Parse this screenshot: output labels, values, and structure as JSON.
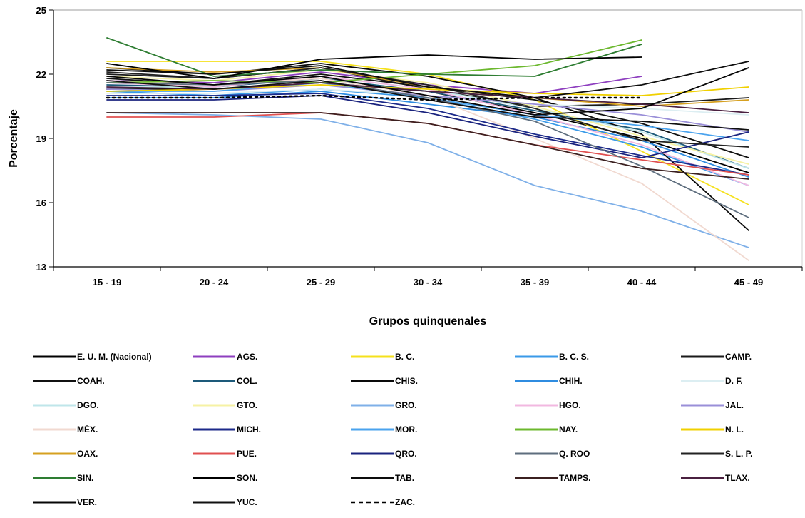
{
  "chart_data": {
    "type": "line",
    "xlabel": "Grupos quinquenales",
    "ylabel": "Porcentaje",
    "ylim": [
      13,
      25
    ],
    "yticks": [
      13,
      16,
      19,
      22,
      25
    ],
    "categories": [
      "15 - 19",
      "20 - 24",
      "25 - 29",
      "30 - 34",
      "35 - 39",
      "40 - 44",
      "45 - 49"
    ],
    "grid": false,
    "legend_position": "bottom",
    "series": [
      {
        "name": "E. U. M.  (Nacional)",
        "color": "#000000",
        "dash": "solid",
        "values": [
          21.3,
          21.3,
          21.6,
          21.2,
          20.2,
          19.0,
          17.4
        ]
      },
      {
        "name": "AGS.",
        "color": "#8e3fbf",
        "dash": "solid",
        "values": [
          21.7,
          21.6,
          22.1,
          21.5,
          21.1,
          21.9,
          null
        ]
      },
      {
        "name": "B. C.",
        "color": "#f5e11c",
        "dash": "solid",
        "values": [
          22.6,
          22.6,
          22.6,
          22.0,
          20.8,
          18.4,
          15.9
        ]
      },
      {
        "name": "B. C. S.",
        "color": "#3a9ae8",
        "dash": "solid",
        "values": [
          21.2,
          21.0,
          21.3,
          20.9,
          19.9,
          18.6,
          16.8
        ]
      },
      {
        "name": "CAMP.",
        "color": "#1a1a1a",
        "dash": "solid",
        "values": [
          22.0,
          21.8,
          22.3,
          21.3,
          20.5,
          20.6,
          20.9
        ]
      },
      {
        "name": "COAH.",
        "color": "#111111",
        "dash": "solid",
        "values": [
          21.8,
          21.5,
          22.0,
          21.4,
          20.8,
          19.7,
          18.1
        ]
      },
      {
        "name": "COL.",
        "color": "#1d5a7a",
        "dash": "solid",
        "values": [
          21.5,
          21.4,
          21.8,
          21.2,
          20.3,
          19.4,
          17.6
        ]
      },
      {
        "name": "CHIS.",
        "color": "#0a0a0a",
        "dash": "solid",
        "values": [
          22.3,
          22.0,
          22.5,
          21.9,
          20.9,
          19.2,
          14.7
        ]
      },
      {
        "name": "CHIH.",
        "color": "#2f8ce0",
        "dash": "solid",
        "values": [
          20.9,
          20.9,
          21.2,
          20.6,
          20.0,
          18.9,
          17.2
        ]
      },
      {
        "name": "D. F.",
        "color": "#dceef2",
        "dash": "solid",
        "values": [
          21.1,
          21.1,
          21.3,
          21.0,
          20.6,
          20.4,
          20.1
        ]
      },
      {
        "name": "DGO.",
        "color": "#bfe6ea",
        "dash": "solid",
        "values": [
          21.4,
          21.4,
          21.9,
          21.3,
          20.4,
          19.3,
          17.6
        ]
      },
      {
        "name": "GTO.",
        "color": "#f6f2a4",
        "dash": "solid",
        "values": [
          21.9,
          21.7,
          22.2,
          21.6,
          20.5,
          19.1,
          17.8
        ]
      },
      {
        "name": "GRO.",
        "color": "#7fb0e8",
        "dash": "solid",
        "values": [
          20.2,
          20.1,
          19.9,
          18.8,
          16.8,
          15.6,
          13.9
        ]
      },
      {
        "name": "HGO.",
        "color": "#f2b8e0",
        "dash": "solid",
        "values": [
          21.6,
          21.4,
          21.9,
          21.3,
          20.1,
          18.7,
          16.8
        ]
      },
      {
        "name": "JAL.",
        "color": "#9a8fd8",
        "dash": "solid",
        "values": [
          21.3,
          21.2,
          21.5,
          21.0,
          20.6,
          20.1,
          19.3
        ]
      },
      {
        "name": "MÉX.",
        "color": "#f1d9d0",
        "dash": "solid",
        "values": [
          21.7,
          21.5,
          21.8,
          21.0,
          19.0,
          16.9,
          13.3
        ]
      },
      {
        "name": "MICH.",
        "color": "#1c2a8a",
        "dash": "solid",
        "values": [
          21.0,
          21.0,
          21.1,
          20.4,
          19.2,
          18.2,
          17.3
        ]
      },
      {
        "name": "MOR.",
        "color": "#4aa3ee",
        "dash": "solid",
        "values": [
          21.2,
          21.2,
          21.6,
          20.9,
          20.1,
          19.6,
          18.9
        ]
      },
      {
        "name": "NAY.",
        "color": "#6cb82e",
        "dash": "solid",
        "values": [
          21.6,
          21.7,
          21.6,
          22.0,
          22.4,
          23.6,
          null
        ]
      },
      {
        "name": "N. L.",
        "color": "#f0d000",
        "dash": "solid",
        "values": [
          21.2,
          21.3,
          21.5,
          21.3,
          21.1,
          21.0,
          21.4
        ]
      },
      {
        "name": "OAX.",
        "color": "#d6a020",
        "dash": "solid",
        "values": [
          22.3,
          22.1,
          22.3,
          21.4,
          20.9,
          20.5,
          20.8
        ]
      },
      {
        "name": "PUE.",
        "color": "#e05050",
        "dash": "solid",
        "values": [
          20.0,
          20.0,
          20.2,
          19.7,
          18.7,
          18.0,
          17.3
        ]
      },
      {
        "name": "QRO.",
        "color": "#1a237e",
        "dash": "solid",
        "values": [
          20.8,
          20.8,
          21.0,
          20.2,
          19.1,
          18.1,
          19.3
        ]
      },
      {
        "name": "Q. ROO",
        "color": "#5e6e7e",
        "dash": "solid",
        "values": [
          21.6,
          21.5,
          21.7,
          20.9,
          19.8,
          17.7,
          15.3
        ]
      },
      {
        "name": "S. L. P.",
        "color": "#222222",
        "dash": "solid",
        "values": [
          22.1,
          21.8,
          22.3,
          21.5,
          20.4,
          18.9,
          18.6
        ]
      },
      {
        "name": "SIN.",
        "color": "#2e7d32",
        "dash": "solid",
        "values": [
          23.7,
          21.9,
          22.2,
          22.0,
          21.9,
          23.4,
          null
        ]
      },
      {
        "name": "SON.",
        "color": "#000000",
        "dash": "solid",
        "values": [
          22.5,
          21.8,
          22.7,
          22.9,
          22.7,
          22.8,
          null
        ]
      },
      {
        "name": "TAB.",
        "color": "#0d0d0d",
        "dash": "solid",
        "values": [
          22.2,
          22.0,
          22.4,
          21.4,
          20.9,
          21.5,
          22.6
        ]
      },
      {
        "name": "TAMPS.",
        "color": "#3b2020",
        "dash": "solid",
        "values": [
          20.2,
          20.2,
          20.2,
          19.7,
          18.7,
          17.6,
          17.1
        ]
      },
      {
        "name": "TLAX.",
        "color": "#4a2040",
        "dash": "solid",
        "values": [
          21.4,
          21.3,
          21.6,
          21.2,
          20.9,
          20.6,
          20.2
        ]
      },
      {
        "name": "VER.",
        "color": "#050505",
        "dash": "solid",
        "values": [
          21.9,
          21.5,
          21.9,
          21.0,
          20.1,
          20.4,
          22.3
        ]
      },
      {
        "name": "YUC.",
        "color": "#101010",
        "dash": "solid",
        "values": [
          21.7,
          21.3,
          21.7,
          20.8,
          20.0,
          19.8,
          19.4
        ]
      },
      {
        "name": "ZAC.",
        "color": "#000000",
        "dash": "dotted",
        "values": [
          20.9,
          20.9,
          21.0,
          20.8,
          20.9,
          20.9,
          null
        ]
      }
    ]
  }
}
